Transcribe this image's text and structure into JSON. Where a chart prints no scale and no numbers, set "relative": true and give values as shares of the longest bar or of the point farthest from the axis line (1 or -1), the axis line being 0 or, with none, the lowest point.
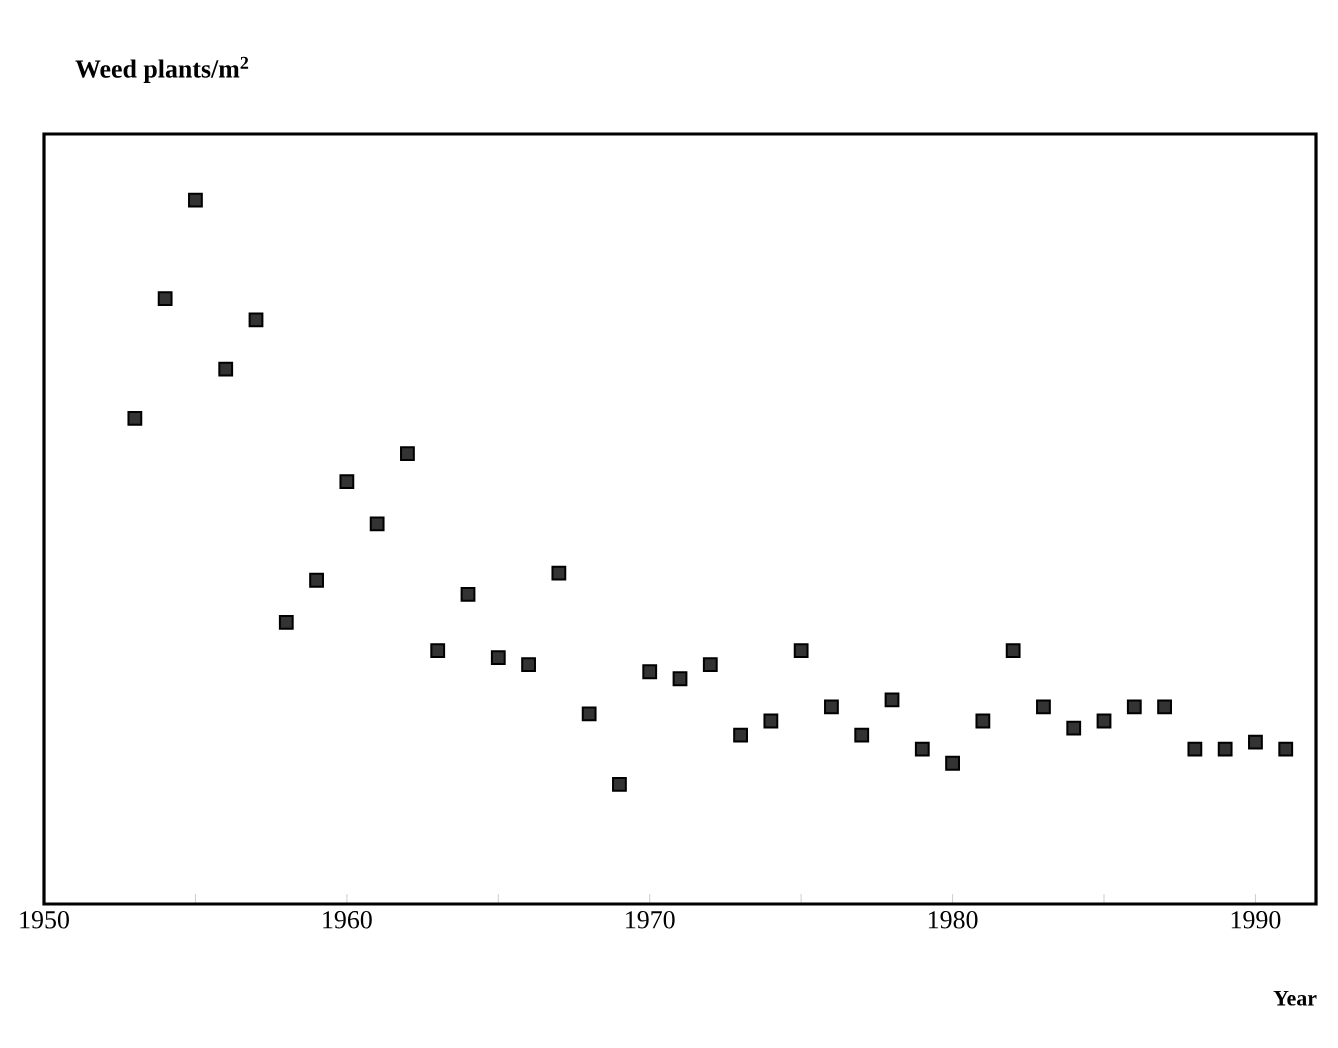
{
  "chart_data": {
    "type": "scatter",
    "ylabel": "Weed plants/m$^{2}$",
    "xlabel": "Year",
    "relative": true,
    "marker": "square",
    "x": [
      1953,
      1954,
      1955,
      1956,
      1957,
      1958,
      1959,
      1960,
      1961,
      1962,
      1963,
      1964,
      1965,
      1966,
      1967,
      1968,
      1969,
      1970,
      1971,
      1972,
      1973,
      1974,
      1975,
      1976,
      1977,
      1978,
      1979,
      1980,
      1981,
      1982,
      1983,
      1984,
      1985,
      1986,
      1987,
      1988,
      1989,
      1990,
      1991
    ],
    "series": [
      {
        "color": "#333333",
        "values": [
          0.69,
          0.86,
          1.0,
          0.76,
          0.83,
          0.4,
          0.46,
          0.6,
          0.54,
          0.64,
          0.36,
          0.44,
          0.35,
          0.34,
          0.47,
          0.27,
          0.17,
          0.33,
          0.32,
          0.34,
          0.24,
          0.26,
          0.36,
          0.28,
          0.24,
          0.29,
          0.22,
          0.2,
          0.26,
          0.36,
          0.28,
          0.25,
          0.26,
          0.28,
          0.28,
          0.22,
          0.22,
          0.23,
          0.22
        ]
      }
    ],
    "xlim": [
      1950,
      1992
    ],
    "xticks": [
      1950,
      {
        "value": 1955,
        "label": null
      },
      1960,
      {
        "value": 1965,
        "label": null
      },
      1970,
      {
        "value": 1975,
        "label": null
      },
      1980,
      {
        "value": 1985,
        "label": null
      },
      1990
    ]
  }
}
